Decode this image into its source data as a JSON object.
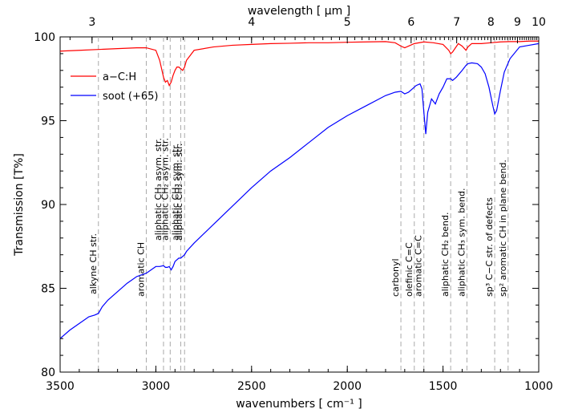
{
  "chart_data": {
    "type": "line",
    "xlabel_bottom": "wavenumbers [ cm⁻¹ ]",
    "xlabel_top": "wavelength [ μm ]",
    "ylabel": "Transmission [T%]",
    "xlim": [
      3500,
      1000
    ],
    "ylim": [
      80,
      100
    ],
    "x_ticks": [
      3500,
      3000,
      2500,
      2000,
      1500,
      1000
    ],
    "x_tick_labels": [
      "3500",
      "3000",
      "2500",
      "2000",
      "1500",
      "1000"
    ],
    "y_ticks": [
      80,
      85,
      90,
      95,
      100
    ],
    "y_tick_labels": [
      "80",
      "85",
      "90",
      "95",
      "100"
    ],
    "top_ticks": [
      3,
      4,
      5,
      6,
      7,
      8,
      9,
      10
    ],
    "top_tick_labels": [
      "3",
      "4",
      "5",
      "6",
      "7",
      "8",
      "9",
      "10"
    ],
    "legend_position": "upper-left",
    "series": [
      {
        "name": "a−C:H",
        "color": "#ff0000",
        "x": [
          3500,
          3400,
          3300,
          3200,
          3100,
          3050,
          3000,
          2980,
          2960,
          2950,
          2940,
          2930,
          2920,
          2910,
          2900,
          2890,
          2880,
          2870,
          2860,
          2850,
          2840,
          2800,
          2700,
          2600,
          2500,
          2400,
          2300,
          2200,
          2100,
          2000,
          1900,
          1800,
          1750,
          1720,
          1700,
          1650,
          1600,
          1550,
          1500,
          1470,
          1460,
          1450,
          1420,
          1400,
          1380,
          1370,
          1350,
          1300,
          1250,
          1200,
          1150,
          1100,
          1050,
          1000
        ],
        "y": [
          99.15,
          99.2,
          99.25,
          99.3,
          99.35,
          99.35,
          99.2,
          98.6,
          97.6,
          97.3,
          97.4,
          97.1,
          97.3,
          97.7,
          98.0,
          98.2,
          98.2,
          98.1,
          98.0,
          98.2,
          98.6,
          99.2,
          99.4,
          99.5,
          99.55,
          99.6,
          99.62,
          99.65,
          99.65,
          99.68,
          99.7,
          99.72,
          99.65,
          99.45,
          99.35,
          99.6,
          99.7,
          99.65,
          99.55,
          99.2,
          99.0,
          99.1,
          99.6,
          99.45,
          99.2,
          99.4,
          99.6,
          99.6,
          99.65,
          99.7,
          99.72,
          99.72,
          99.75,
          99.75
        ]
      },
      {
        "name": "soot (+65)",
        "color": "#0000ff",
        "x": [
          3500,
          3450,
          3400,
          3350,
          3320,
          3300,
          3280,
          3250,
          3200,
          3150,
          3100,
          3050,
          3000,
          2980,
          2960,
          2950,
          2940,
          2930,
          2920,
          2910,
          2900,
          2890,
          2880,
          2870,
          2860,
          2850,
          2840,
          2800,
          2700,
          2600,
          2500,
          2400,
          2300,
          2200,
          2100,
          2000,
          1900,
          1800,
          1750,
          1720,
          1700,
          1680,
          1660,
          1640,
          1620,
          1610,
          1600,
          1590,
          1580,
          1560,
          1540,
          1520,
          1500,
          1480,
          1460,
          1450,
          1430,
          1400,
          1380,
          1370,
          1350,
          1320,
          1300,
          1280,
          1260,
          1240,
          1230,
          1220,
          1200,
          1180,
          1150,
          1100,
          1050,
          1000
        ],
        "y": [
          82.0,
          82.5,
          82.9,
          83.3,
          83.4,
          83.5,
          83.9,
          84.3,
          84.8,
          85.3,
          85.7,
          85.9,
          86.3,
          86.3,
          86.35,
          86.25,
          86.25,
          86.3,
          86.1,
          86.3,
          86.6,
          86.7,
          86.8,
          86.8,
          86.9,
          87.0,
          87.2,
          87.7,
          88.8,
          89.9,
          91.0,
          92.0,
          92.8,
          93.7,
          94.6,
          95.3,
          95.9,
          96.5,
          96.7,
          96.75,
          96.6,
          96.7,
          96.9,
          97.1,
          97.2,
          96.9,
          95.5,
          94.2,
          95.5,
          96.3,
          96.0,
          96.6,
          97.0,
          97.5,
          97.5,
          97.4,
          97.6,
          98.0,
          98.3,
          98.4,
          98.45,
          98.4,
          98.2,
          97.8,
          97.0,
          95.9,
          95.4,
          95.6,
          96.8,
          97.9,
          98.7,
          99.4,
          99.5,
          99.6
        ]
      }
    ],
    "annotations": [
      {
        "x": 3300,
        "label": "alkyne CH str."
      },
      {
        "x": 3050,
        "label": "aromatic CH"
      },
      {
        "x": 2960,
        "label": "aliphatic CH₃ asym. str."
      },
      {
        "x": 2925,
        "label": "aliphatic CH₂ asym. str."
      },
      {
        "x": 2870,
        "label": "aliphatic CH₃ sym. str."
      },
      {
        "x": 2850,
        "label": "aliphatic CH₂ sym. str."
      },
      {
        "x": 1720,
        "label": "carbonyl"
      },
      {
        "x": 1650,
        "label": "olefinic C=C"
      },
      {
        "x": 1600,
        "label": "aromatic C=C"
      },
      {
        "x": 1460,
        "label": "aliphatic CH₂ bend."
      },
      {
        "x": 1375,
        "label": "aliphatic CH₃ sym. bend."
      },
      {
        "x": 1230,
        "label": "sp³ C−C str. of defects"
      },
      {
        "x": 1160,
        "label": "sp² aromatic CH in plane bend."
      }
    ]
  }
}
